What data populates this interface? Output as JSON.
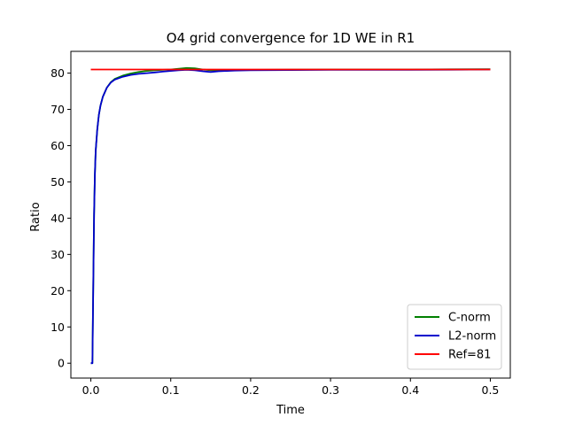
{
  "chart_data": {
    "type": "line",
    "title": "O4 grid convergence for 1D WE in R1",
    "xlabel": "Time",
    "ylabel": "Ratio",
    "xlim": [
      -0.025,
      0.525
    ],
    "ylim": [
      -4.1,
      86.0
    ],
    "xticks": [
      0.0,
      0.1,
      0.2,
      0.3,
      0.4,
      0.5
    ],
    "xtick_labels": [
      "0.0",
      "0.1",
      "0.2",
      "0.3",
      "0.4",
      "0.5"
    ],
    "yticks": [
      0,
      10,
      20,
      30,
      40,
      50,
      60,
      70,
      80
    ],
    "ytick_labels": [
      "0",
      "10",
      "20",
      "30",
      "40",
      "50",
      "60",
      "70",
      "80"
    ],
    "grid": false,
    "legend_position": "lower-right",
    "series": [
      {
        "name": "C-norm",
        "color": "#008000",
        "x": [
          0.0,
          0.002,
          0.003,
          0.004,
          0.005,
          0.006,
          0.008,
          0.01,
          0.012,
          0.015,
          0.02,
          0.025,
          0.03,
          0.04,
          0.05,
          0.06,
          0.07,
          0.08,
          0.09,
          0.1,
          0.11,
          0.12,
          0.13,
          0.14,
          0.15,
          0.16,
          0.18,
          0.2,
          0.25,
          0.3,
          0.35,
          0.4,
          0.45,
          0.5
        ],
        "y": [
          0.0,
          0.0,
          22.0,
          41.0,
          52.0,
          58.5,
          64.5,
          68.5,
          71.0,
          73.5,
          76.0,
          77.5,
          78.4,
          79.3,
          79.9,
          80.3,
          80.6,
          80.8,
          80.9,
          81.0,
          81.2,
          81.4,
          81.3,
          81.0,
          80.8,
          80.8,
          80.9,
          80.9,
          80.95,
          81.0,
          81.0,
          81.0,
          81.05,
          81.1
        ]
      },
      {
        "name": "L2-norm",
        "color": "#0000cd",
        "x": [
          0.0,
          0.002,
          0.003,
          0.004,
          0.005,
          0.006,
          0.008,
          0.01,
          0.012,
          0.015,
          0.02,
          0.025,
          0.03,
          0.04,
          0.05,
          0.06,
          0.07,
          0.08,
          0.09,
          0.1,
          0.11,
          0.12,
          0.13,
          0.14,
          0.15,
          0.16,
          0.18,
          0.2,
          0.25,
          0.3,
          0.35,
          0.4,
          0.45,
          0.5
        ],
        "y": [
          0.0,
          0.0,
          22.0,
          41.0,
          52.0,
          58.5,
          64.5,
          68.5,
          71.0,
          73.5,
          76.0,
          77.4,
          78.2,
          79.0,
          79.5,
          79.8,
          80.0,
          80.2,
          80.4,
          80.6,
          80.8,
          80.9,
          80.8,
          80.5,
          80.3,
          80.5,
          80.7,
          80.8,
          80.85,
          80.9,
          80.9,
          80.9,
          80.95,
          81.0
        ]
      },
      {
        "name": "Ref=81",
        "color": "#ff0000",
        "x": [
          0.0,
          0.5
        ],
        "y": [
          81,
          81
        ]
      }
    ]
  }
}
